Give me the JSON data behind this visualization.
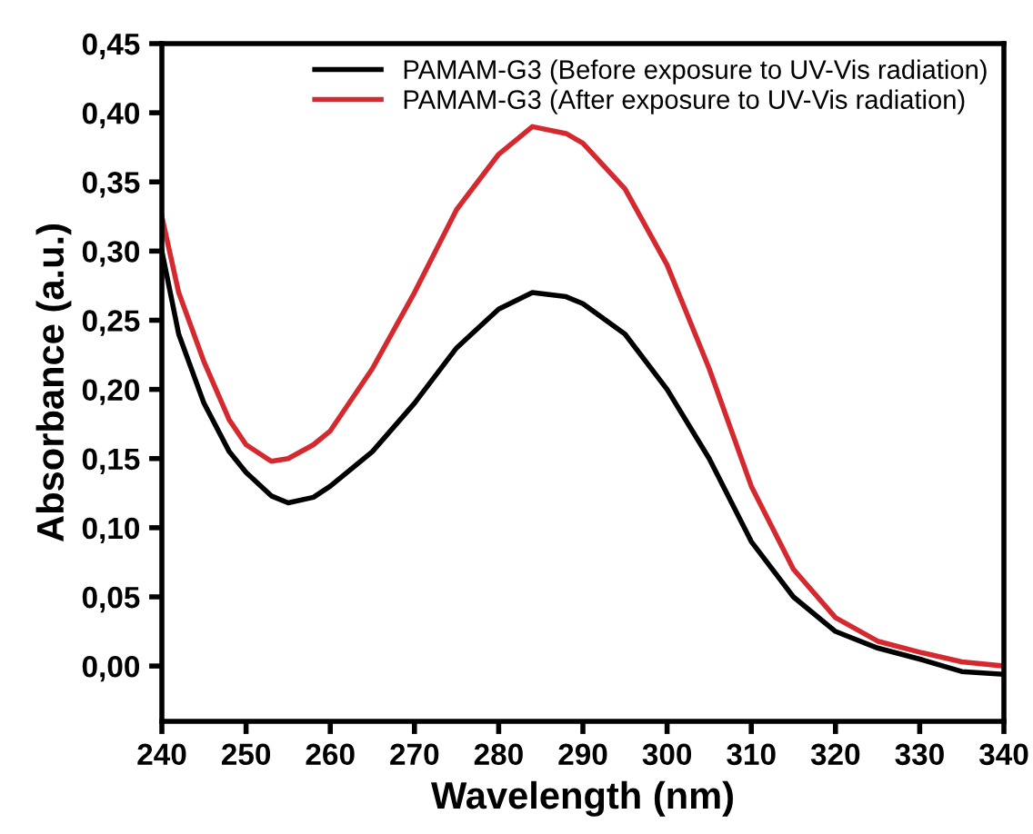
{
  "chart_data": {
    "type": "line",
    "xlabel": "Wavelength (nm)",
    "ylabel": "Absorbance (a.u.)",
    "xlim": [
      240,
      340
    ],
    "xticks": [
      240,
      250,
      260,
      270,
      280,
      290,
      300,
      310,
      320,
      330,
      340
    ],
    "ylim": [
      -0.04,
      0.45
    ],
    "yticks": [
      {
        "value": 0,
        "label": "0,00"
      },
      {
        "value": 0.05,
        "label": "0,05"
      },
      {
        "value": 0.1,
        "label": "0,10"
      },
      {
        "value": 0.15,
        "label": "0,15"
      },
      {
        "value": 0.2,
        "label": "0,20"
      },
      {
        "value": 0.25,
        "label": "0,25"
      },
      {
        "value": 0.3,
        "label": "0,30"
      },
      {
        "value": 0.35,
        "label": "0,35"
      },
      {
        "value": 0.4,
        "label": "0,40"
      },
      {
        "value": 0.45,
        "label": "0,45"
      }
    ],
    "grid": false,
    "legend": "top right",
    "marker": "none",
    "line_style": "solid",
    "x": [
      240,
      242,
      245,
      248,
      250,
      253,
      255,
      258,
      260,
      265,
      270,
      275,
      280,
      284,
      288,
      290,
      295,
      300,
      305,
      310,
      315,
      320,
      325,
      330,
      335,
      340
    ],
    "series": [
      {
        "name": "PAMAM-G3 (Before exposure to UV-Vis radiation)",
        "color": "#000000",
        "values": [
          0.3,
          0.24,
          0.19,
          0.155,
          0.14,
          0.123,
          0.118,
          0.122,
          0.13,
          0.155,
          0.19,
          0.23,
          0.258,
          0.27,
          0.267,
          0.262,
          0.24,
          0.2,
          0.15,
          0.09,
          0.05,
          0.025,
          0.013,
          0.005,
          -0.004,
          -0.006
        ]
      },
      {
        "name": "PAMAM-G3 (After exposure to UV-Vis radiation)",
        "color": "#d42a2f",
        "values": [
          0.325,
          0.27,
          0.22,
          0.178,
          0.16,
          0.148,
          0.15,
          0.16,
          0.17,
          0.215,
          0.27,
          0.33,
          0.37,
          0.39,
          0.385,
          0.378,
          0.345,
          0.29,
          0.215,
          0.13,
          0.07,
          0.035,
          0.018,
          0.01,
          0.003,
          0.0
        ]
      }
    ]
  }
}
